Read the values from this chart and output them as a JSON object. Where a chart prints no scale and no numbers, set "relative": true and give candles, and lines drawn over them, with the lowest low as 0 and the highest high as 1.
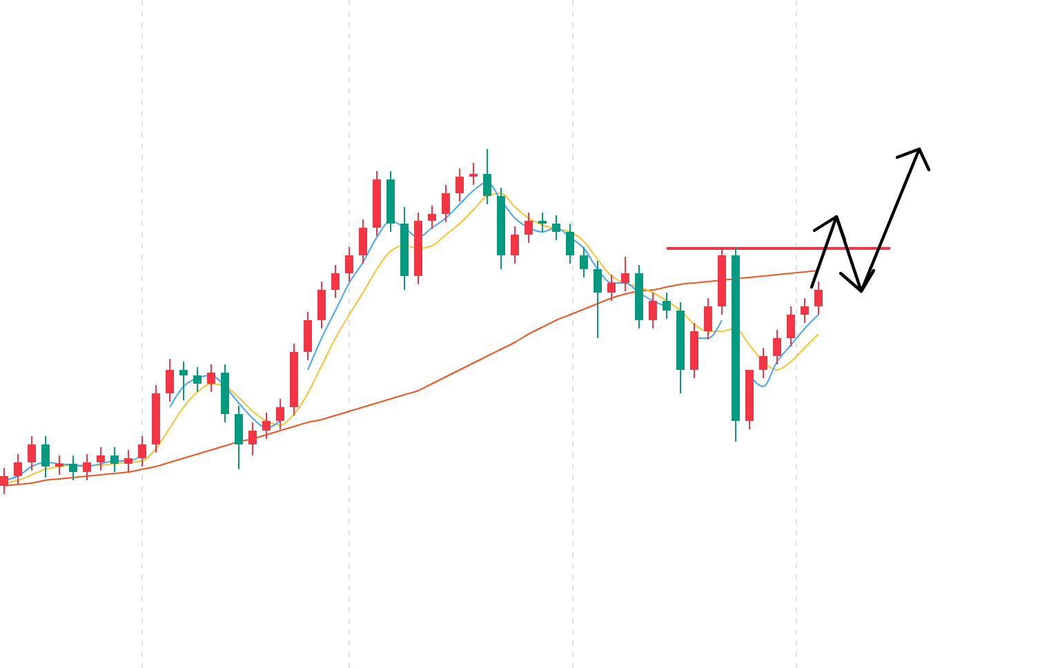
{
  "chart_data": {
    "type": "candlestick",
    "relative": true,
    "categories": [
      null,
      null,
      null,
      null,
      null,
      null,
      null,
      null,
      null,
      null,
      null,
      null,
      null,
      null,
      null,
      null,
      null,
      null,
      null,
      null,
      null,
      null,
      null,
      null,
      null,
      null,
      null,
      null,
      null,
      null,
      null,
      null,
      null,
      null,
      null,
      null,
      null,
      null,
      null,
      null,
      null,
      null,
      null,
      null,
      null,
      null,
      null,
      null,
      null,
      null,
      null,
      null,
      null,
      null,
      null,
      null,
      null,
      null,
      null,
      null
    ],
    "ohlc": [
      [
        0.024,
        0.076,
        0,
        0.052
      ],
      [
        0.052,
        0.116,
        0.028,
        0.092
      ],
      [
        0.092,
        0.168,
        0.068,
        0.144
      ],
      [
        0.144,
        0.168,
        0.048,
        0.08
      ],
      [
        0.08,
        0.112,
        0.056,
        0.088
      ],
      [
        0.088,
        0.112,
        0.04,
        0.064
      ],
      [
        0.064,
        0.116,
        0.04,
        0.092
      ],
      [
        0.092,
        0.136,
        0.068,
        0.112
      ],
      [
        0.112,
        0.136,
        0.064,
        0.088
      ],
      [
        0.088,
        0.128,
        0.064,
        0.104
      ],
      [
        0.104,
        0.168,
        0.08,
        0.144
      ],
      [
        0.144,
        0.316,
        0.12,
        0.292
      ],
      [
        0.292,
        0.392,
        0.268,
        0.36
      ],
      [
        0.36,
        0.384,
        0.272,
        0.344
      ],
      [
        0.344,
        0.368,
        0.296,
        0.32
      ],
      [
        0.32,
        0.376,
        0.296,
        0.352
      ],
      [
        0.352,
        0.376,
        0.208,
        0.232
      ],
      [
        0.232,
        0.256,
        0.072,
        0.144
      ],
      [
        0.144,
        0.208,
        0.112,
        0.184
      ],
      [
        0.184,
        0.236,
        0.16,
        0.212
      ],
      [
        0.212,
        0.276,
        0.188,
        0.252
      ],
      [
        0.252,
        0.436,
        0.228,
        0.412
      ],
      [
        0.412,
        0.528,
        0.388,
        0.504
      ],
      [
        0.504,
        0.616,
        0.48,
        0.592
      ],
      [
        0.592,
        0.664,
        0.568,
        0.64
      ],
      [
        0.64,
        0.716,
        0.616,
        0.692
      ],
      [
        0.692,
        0.796,
        0.668,
        0.772
      ],
      [
        0.772,
        0.936,
        0.748,
        0.912
      ],
      [
        0.912,
        0.936,
        0.76,
        0.784
      ],
      [
        0.784,
        0.832,
        0.592,
        0.632
      ],
      [
        0.632,
        0.816,
        0.608,
        0.792
      ],
      [
        0.792,
        0.836,
        0.768,
        0.812
      ],
      [
        0.812,
        0.896,
        0.788,
        0.872
      ],
      [
        0.872,
        0.944,
        0.848,
        0.92
      ],
      [
        0.92,
        0.96,
        0.896,
        0.928
      ],
      [
        0.928,
        1,
        0.84,
        0.864
      ],
      [
        0.864,
        0.888,
        0.652,
        0.692
      ],
      [
        0.692,
        0.776,
        0.668,
        0.752
      ],
      [
        0.752,
        0.816,
        0.728,
        0.792
      ],
      [
        0.792,
        0.816,
        0.76,
        0.784
      ],
      [
        0.784,
        0.808,
        0.736,
        0.76
      ],
      [
        0.76,
        0.784,
        0.668,
        0.692
      ],
      [
        0.692,
        0.716,
        0.628,
        0.652
      ],
      [
        0.652,
        0.676,
        0.452,
        0.584
      ],
      [
        0.584,
        0.636,
        0.56,
        0.612
      ],
      [
        0.612,
        0.688,
        0.588,
        0.64
      ],
      [
        0.64,
        0.664,
        0.48,
        0.504
      ],
      [
        0.504,
        0.584,
        0.48,
        0.56
      ],
      [
        0.56,
        0.584,
        0.508,
        0.532
      ],
      [
        0.532,
        0.556,
        0.292,
        0.36
      ],
      [
        0.36,
        0.496,
        0.336,
        0.472
      ],
      [
        0.472,
        0.568,
        0.448,
        0.544
      ],
      [
        0.544,
        0.716,
        0.52,
        0.692
      ],
      [
        0.692,
        0.716,
        0.152,
        0.212
      ],
      [
        0.212,
        0.36,
        0.188,
        0.36
      ],
      [
        0.36,
        0.424,
        0.336,
        0.4
      ],
      [
        0.4,
        0.476,
        0.376,
        0.452
      ],
      [
        0.452,
        0.544,
        0.428,
        0.52
      ],
      [
        0.52,
        0.568,
        0.496,
        0.544
      ],
      [
        0.544,
        0.616,
        0.52,
        0.592
      ]
    ],
    "colors": [
      "#f23645",
      "#f23645",
      "#f23645",
      "#089981",
      "#f23645",
      "#089981",
      "#f23645",
      "#f23645",
      "#089981",
      "#f23645",
      "#f23645",
      "#f23645",
      "#f23645",
      "#089981",
      "#089981",
      "#f23645",
      "#089981",
      "#089981",
      "#f23645",
      "#f23645",
      "#f23645",
      "#f23645",
      "#f23645",
      "#f23645",
      "#f23645",
      "#f23645",
      "#f23645",
      "#f23645",
      "#089981",
      "#089981",
      "#f23645",
      "#f23645",
      "#f23645",
      "#f23645",
      "#f23645",
      "#089981",
      "#089981",
      "#f23645",
      "#f23645",
      "#089981",
      "#089981",
      "#089981",
      "#089981",
      "#089981",
      "#f23645",
      "#f23645",
      "#089981",
      "#f23645",
      "#089981",
      "#089981",
      "#f23645",
      "#f23645",
      "#f23645",
      "#089981",
      "#f23645",
      "#f23645",
      "#f23645",
      "#f23645",
      "#f23645",
      "#f23645"
    ],
    "series": [
      {
        "type": "line",
        "color": "#42a5f5",
        "values": [
          0.04,
          0.052,
          0.08,
          0.092,
          0.088,
          0.084,
          0.08,
          0.088,
          0.096,
          0.096,
          0.112,
          null,
          0.252,
          0.312,
          0.336,
          0.344,
          0.312,
          0.264,
          0.22,
          0.192,
          0.212,
          null,
          0.36,
          0.452,
          0.532,
          0.612,
          0.672,
          0.744,
          0.792,
          0.772,
          0.744,
          0.772,
          0.8,
          0.84,
          0.88,
          0.904,
          0.852,
          0.8,
          0.772,
          0.76,
          0.772,
          0.744,
          0.712,
          0.652,
          0.612,
          0.612,
          0.584,
          0.56,
          0.544,
          null,
          0.452,
          0.452,
          0.504,
          null,
          0.344,
          0.312,
          0.384,
          0.432,
          0.48,
          0.52
        ]
      },
      {
        "type": "line",
        "color": "#fbc02d",
        "values": [
          0.032,
          0.04,
          0.056,
          0.072,
          0.08,
          0.084,
          0.084,
          0.084,
          0.088,
          0.092,
          0.096,
          0.132,
          0.192,
          0.252,
          0.296,
          0.32,
          0.312,
          0.28,
          0.24,
          0.212,
          0.2,
          0.232,
          0.292,
          0.372,
          0.452,
          0.52,
          0.584,
          0.652,
          0.704,
          0.72,
          0.712,
          0.72,
          0.752,
          0.784,
          0.824,
          0.864,
          0.872,
          0.832,
          0.8,
          0.78,
          0.768,
          0.76,
          0.732,
          0.68,
          0.632,
          0.612,
          0.6,
          0.584,
          0.56,
          0.532,
          0.492,
          0.472,
          0.472,
          0.48,
          0.432,
          0.384,
          0.36,
          0.384,
          0.424,
          0.464
        ]
      },
      {
        "type": "line",
        "color": "#f4511e",
        "values": [
          0.024,
          0.028,
          0.032,
          0.04,
          0.044,
          0.048,
          0.052,
          0.056,
          0.06,
          0.064,
          0.072,
          0.08,
          0.092,
          0.104,
          0.116,
          0.128,
          0.14,
          0.152,
          0.16,
          0.172,
          0.184,
          0.196,
          0.208,
          0.216,
          0.228,
          0.24,
          0.252,
          0.264,
          0.276,
          0.288,
          0.3,
          0.32,
          0.34,
          0.36,
          0.38,
          0.4,
          0.42,
          0.44,
          0.464,
          0.484,
          0.504,
          0.52,
          0.536,
          0.552,
          0.568,
          0.58,
          0.588,
          0.592,
          0.6,
          0.608,
          0.612,
          0.616,
          0.62,
          0.624,
          0.628,
          0.632,
          0.636,
          0.64,
          0.644,
          0.648
        ]
      }
    ],
    "grid": "x",
    "ref_lines": [
      {
        "axis": "y",
        "value": 0.712,
        "color": "#f23645"
      }
    ]
  }
}
